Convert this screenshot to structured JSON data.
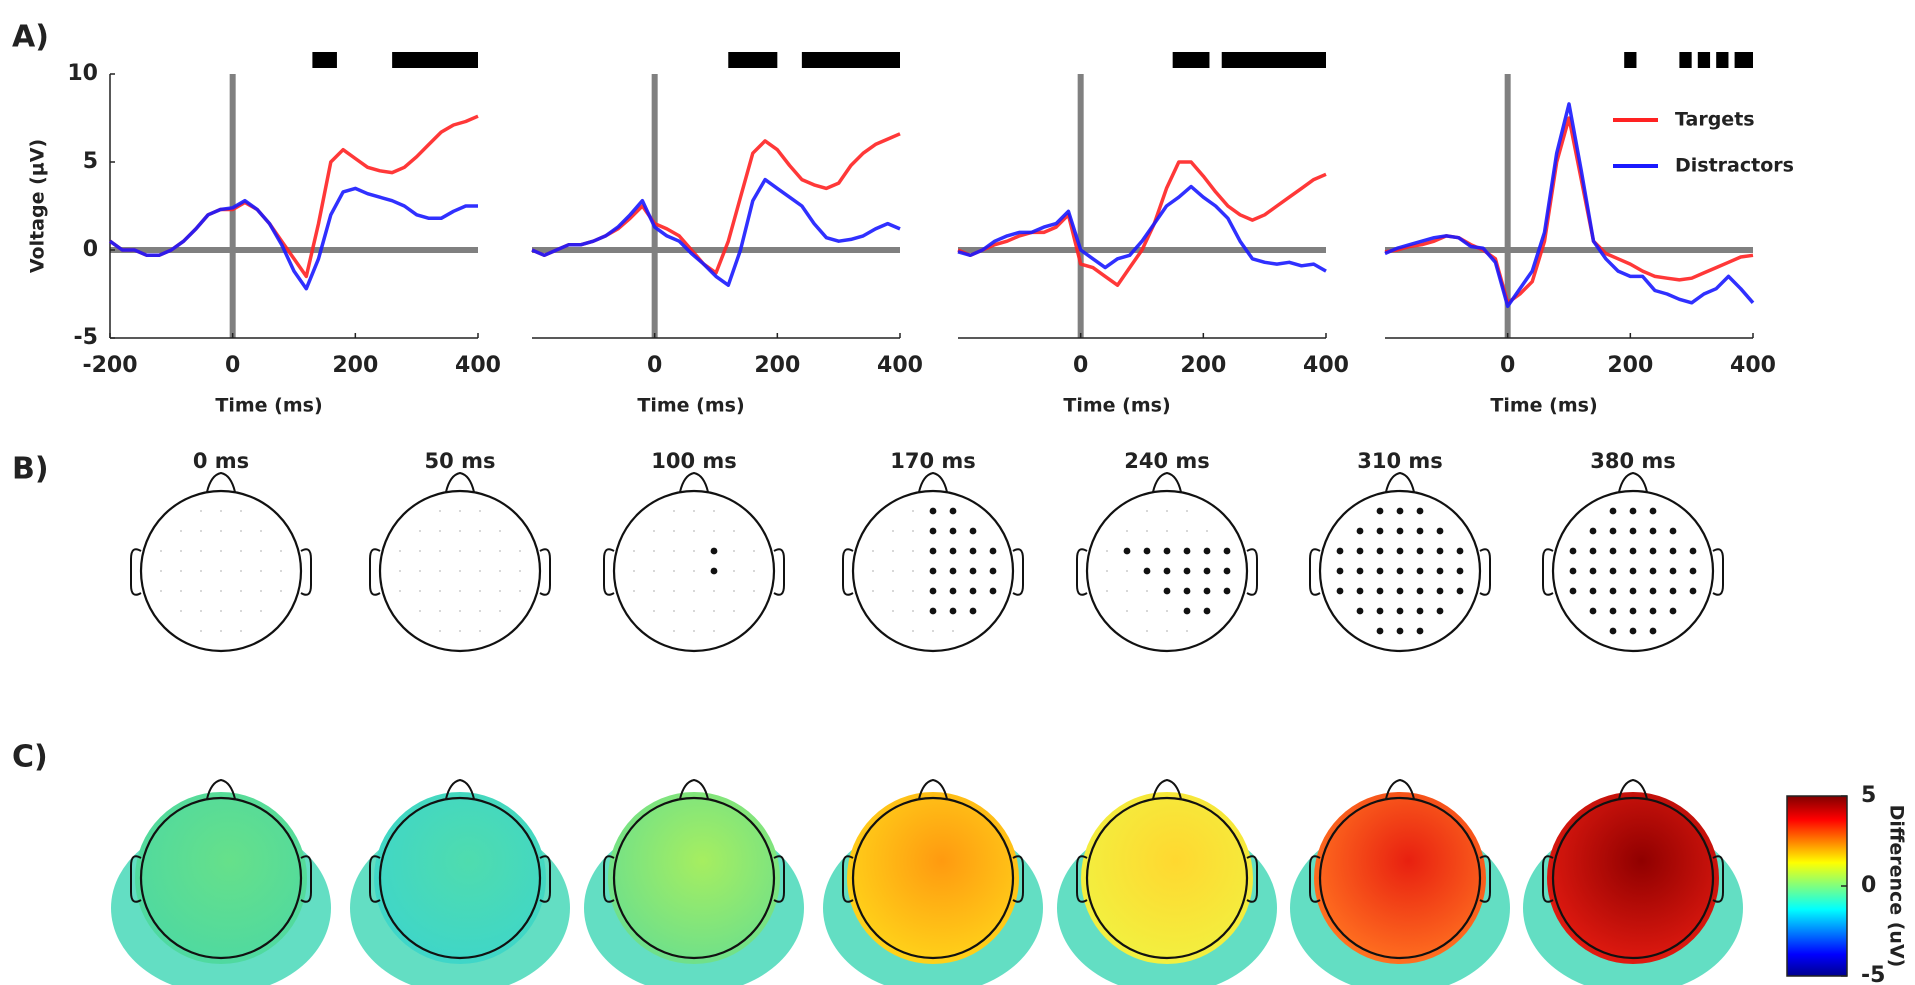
{
  "panel_labels": [
    "A)",
    "B)",
    "C)"
  ],
  "chart_data": [
    {
      "type": "line",
      "xlabel": "Time (ms)",
      "ylabel": "Voltage (µV)",
      "x": [
        -200,
        -180,
        -160,
        -140,
        -120,
        -100,
        -80,
        -60,
        -40,
        -20,
        0,
        20,
        40,
        60,
        80,
        100,
        120,
        140,
        160,
        180,
        200,
        220,
        240,
        260,
        280,
        300,
        320,
        340,
        360,
        380,
        400
      ],
      "series": [
        {
          "color": "#ff2222",
          "values": [
            0.5,
            0,
            0,
            -0.3,
            -0.3,
            0,
            0.5,
            1.2,
            2,
            2.3,
            2.3,
            2.7,
            2.3,
            1.5,
            0.5,
            -0.5,
            -1.5,
            1.5,
            5,
            5.7,
            5.2,
            4.7,
            4.5,
            4.4,
            4.7,
            5.3,
            6,
            6.7,
            7.1,
            7.3,
            7.6
          ]
        },
        {
          "color": "#1a1aff",
          "values": [
            0.5,
            0,
            0,
            -0.3,
            -0.3,
            0,
            0.5,
            1.2,
            2,
            2.3,
            2.4,
            2.8,
            2.3,
            1.5,
            0.3,
            -1.2,
            -2.2,
            -0.5,
            2,
            3.3,
            3.5,
            3.2,
            3,
            2.8,
            2.5,
            2,
            1.8,
            1.8,
            2.2,
            2.5,
            2.5
          ]
        }
      ],
      "xlim": [
        -200,
        400
      ],
      "ylim": [
        -5,
        10
      ],
      "xticks": [
        -200,
        0,
        200,
        400
      ],
      "yticks": [
        -5,
        0,
        5,
        10
      ],
      "significance": [
        [
          130,
          170
        ],
        [
          260,
          400
        ]
      ]
    },
    {
      "type": "line",
      "xlabel": "Time (ms)",
      "x": [
        -200,
        -180,
        -160,
        -140,
        -120,
        -100,
        -80,
        -60,
        -40,
        -20,
        0,
        20,
        40,
        60,
        80,
        100,
        120,
        140,
        160,
        180,
        200,
        220,
        240,
        260,
        280,
        300,
        320,
        340,
        360,
        380,
        400
      ],
      "series": [
        {
          "color": "#ff2222",
          "values": [
            0,
            -0.3,
            0,
            0.3,
            0.3,
            0.5,
            0.8,
            1.2,
            1.8,
            2.5,
            1.5,
            1.2,
            0.8,
            0,
            -0.8,
            -1.3,
            0.5,
            3,
            5.5,
            6.2,
            5.7,
            4.8,
            4,
            3.7,
            3.5,
            3.8,
            4.8,
            5.5,
            6,
            6.3,
            6.6
          ]
        },
        {
          "color": "#1a1aff",
          "values": [
            0,
            -0.3,
            0,
            0.3,
            0.3,
            0.5,
            0.8,
            1.3,
            2,
            2.8,
            1.3,
            0.8,
            0.5,
            -0.2,
            -0.8,
            -1.5,
            -2,
            0,
            2.8,
            4,
            3.5,
            3,
            2.5,
            1.5,
            0.7,
            0.5,
            0.6,
            0.8,
            1.2,
            1.5,
            1.2
          ]
        }
      ],
      "xlim": [
        -200,
        400
      ],
      "ylim": [
        -5,
        10
      ],
      "xticks": [
        0,
        200,
        400
      ],
      "significance": [
        [
          120,
          200
        ],
        [
          240,
          400
        ]
      ]
    },
    {
      "type": "line",
      "xlabel": "Time (ms)",
      "x": [
        -200,
        -180,
        -160,
        -140,
        -120,
        -100,
        -80,
        -60,
        -40,
        -20,
        0,
        20,
        40,
        60,
        80,
        100,
        120,
        140,
        160,
        180,
        200,
        220,
        240,
        260,
        280,
        300,
        320,
        340,
        360,
        380,
        400
      ],
      "series": [
        {
          "color": "#ff2222",
          "values": [
            0,
            -0.3,
            0,
            0.3,
            0.5,
            0.8,
            1,
            1,
            1.3,
            2,
            -0.8,
            -1,
            -1.5,
            -2,
            -1,
            0,
            1.5,
            3.5,
            5,
            5,
            4.2,
            3.3,
            2.5,
            2,
            1.7,
            2,
            2.5,
            3,
            3.5,
            4,
            4.3
          ]
        },
        {
          "color": "#1a1aff",
          "values": [
            -0.1,
            -0.3,
            0,
            0.5,
            0.8,
            1,
            1,
            1.3,
            1.5,
            2.2,
            0,
            -0.5,
            -1,
            -0.5,
            -0.3,
            0.5,
            1.5,
            2.5,
            3,
            3.6,
            3,
            2.5,
            1.8,
            0.5,
            -0.5,
            -0.7,
            -0.8,
            -0.7,
            -0.9,
            -0.8,
            -1.2
          ]
        }
      ],
      "xlim": [
        -200,
        400
      ],
      "ylim": [
        -5,
        10
      ],
      "xticks": [
        0,
        200,
        400
      ],
      "significance": [
        [
          150,
          210
        ],
        [
          230,
          400
        ]
      ]
    },
    {
      "type": "line",
      "xlabel": "Time (ms)",
      "x": [
        -200,
        -180,
        -160,
        -140,
        -120,
        -100,
        -80,
        -60,
        -40,
        -20,
        0,
        20,
        40,
        60,
        80,
        100,
        120,
        140,
        160,
        180,
        200,
        220,
        240,
        260,
        280,
        300,
        320,
        340,
        360,
        380,
        400
      ],
      "series": [
        {
          "name": "Targets",
          "color": "#ff2222",
          "values": [
            -0.1,
            0,
            0.2,
            0.3,
            0.5,
            0.8,
            0.7,
            0.3,
            0,
            -0.5,
            -3,
            -2.5,
            -1.8,
            0.5,
            5,
            7.5,
            4,
            0.5,
            -0.2,
            -0.5,
            -0.8,
            -1.2,
            -1.5,
            -1.6,
            -1.7,
            -1.6,
            -1.3,
            -1,
            -0.7,
            -0.4,
            -0.3
          ]
        },
        {
          "name": "Distractors",
          "color": "#1a1aff",
          "values": [
            -0.2,
            0.1,
            0.3,
            0.5,
            0.7,
            0.8,
            0.7,
            0.2,
            0.1,
            -0.7,
            -3.2,
            -2.2,
            -1.2,
            1,
            5.5,
            8.3,
            4.5,
            0.5,
            -0.5,
            -1.2,
            -1.5,
            -1.5,
            -2.3,
            -2.5,
            -2.8,
            -3,
            -2.5,
            -2.2,
            -1.5,
            -2.2,
            -3
          ]
        }
      ],
      "xlim": [
        -200,
        400
      ],
      "ylim": [
        -5,
        10
      ],
      "xticks": [
        0,
        200,
        400
      ],
      "legend": "upper right",
      "significance": [
        [
          190,
          210
        ],
        [
          280,
          300
        ],
        [
          310,
          330
        ],
        [
          340,
          360
        ],
        [
          370,
          400
        ]
      ]
    }
  ],
  "topomap_times": [
    "0 ms",
    "50 ms",
    "100 ms",
    "170 ms",
    "240 ms",
    "310 ms",
    "380 ms"
  ],
  "colorbar": {
    "label": "Difference (uV)",
    "lim": [
      -5,
      5
    ],
    "ticks": [
      5,
      0,
      -5
    ]
  }
}
